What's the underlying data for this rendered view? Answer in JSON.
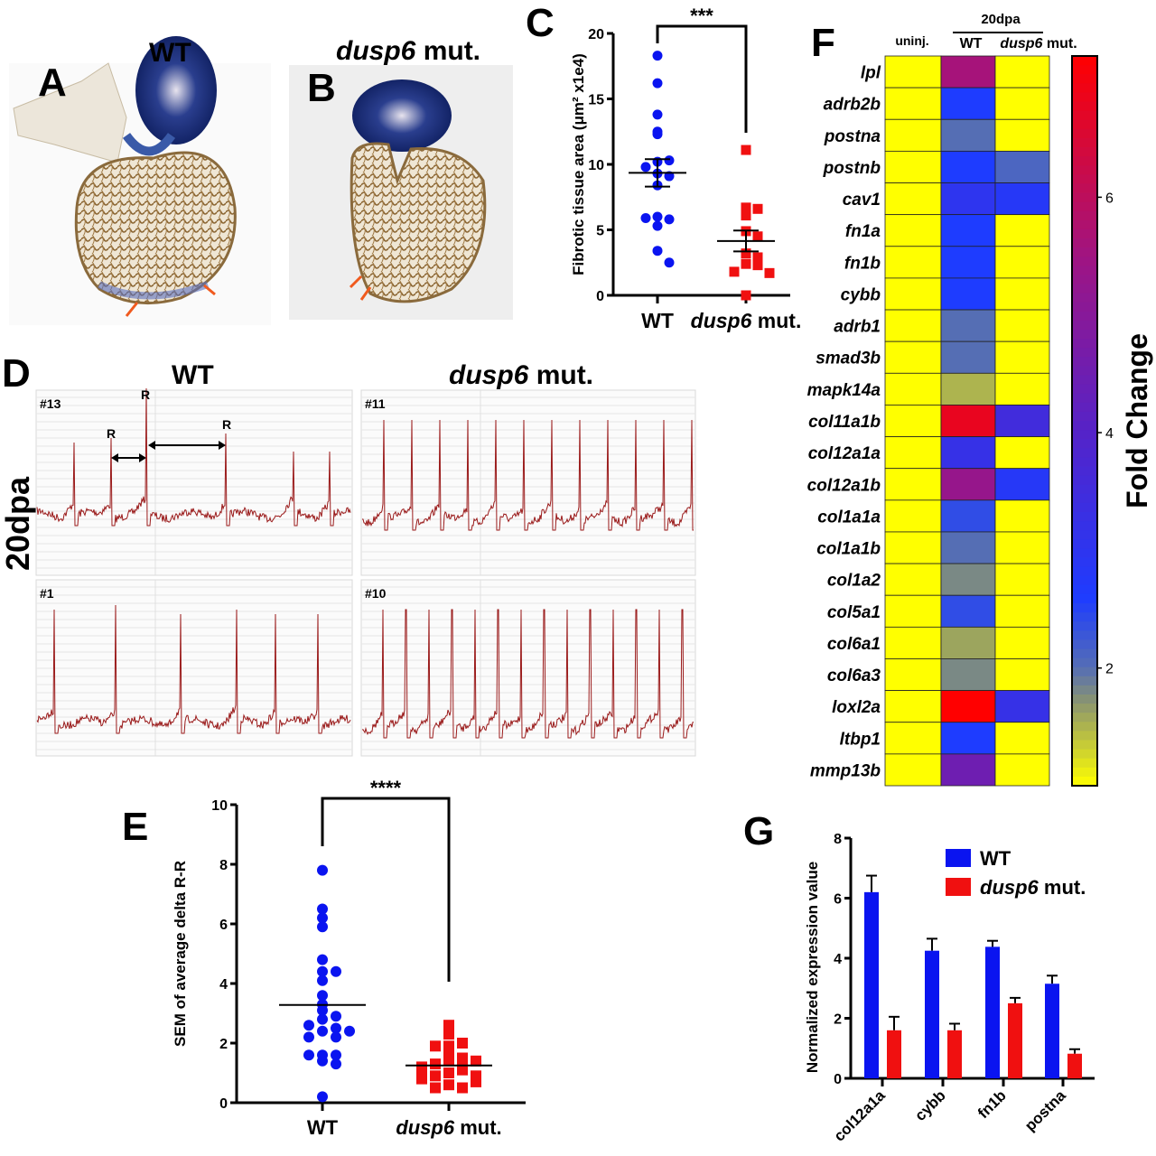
{
  "panels": {
    "A": {
      "letter": "A",
      "title": "WT"
    },
    "B": {
      "letter": "B",
      "title": {
        "italic": "dusp6",
        "rest": " mut."
      }
    },
    "D": {
      "letter": "D",
      "title_wt": "WT",
      "title_mut": {
        "italic": "dusp6",
        "rest": " mut."
      },
      "row_label": "20dpa",
      "traces": [
        "#13",
        "#11",
        "#1",
        "#10"
      ],
      "peak_label": "R"
    },
    "colors": {
      "wt": "#0a14f0",
      "mut": "#f01010",
      "ecg": "#9a1a1a",
      "arrow": "#f05a1e"
    }
  },
  "chart_data": [
    {
      "panel": "C",
      "type": "scatter",
      "ylabel": "Fibrotic tissue area (μm² x1e4)",
      "ylim": [
        0,
        20
      ],
      "yticks": [
        "0",
        "5",
        "10",
        "15",
        "20"
      ],
      "categories": [
        "WT",
        {
          "italic": "dusp6",
          "rest": " mut."
        }
      ],
      "significance": "***",
      "series": [
        {
          "values": [
            18.3,
            16.2,
            13.8,
            12.3,
            12.5,
            10.2,
            10.3,
            9.8,
            9.3,
            9.1,
            8.4,
            6.0,
            5.8,
            5.9,
            5.3,
            3.4,
            2.5
          ],
          "mean": 9.35,
          "sem": [
            8.3,
            10.4
          ],
          "marker": "circle"
        },
        {
          "values": [
            11.1,
            6.7,
            6.6,
            6.1,
            4.9,
            4.5,
            3.2,
            2.9,
            2.4,
            2.3,
            1.8,
            1.7,
            0.0
          ],
          "mean": 4.15,
          "sem": [
            3.35,
            4.95
          ],
          "marker": "square"
        }
      ]
    },
    {
      "panel": "E",
      "type": "scatter",
      "ylabel": "SEM of average delta R-R",
      "ylim": [
        0,
        10
      ],
      "yticks": [
        "0",
        "2",
        "4",
        "6",
        "8",
        "10"
      ],
      "categories": [
        "WT",
        {
          "italic": "dusp6",
          "rest": " mut."
        }
      ],
      "significance": "****",
      "series": [
        {
          "values": [
            7.8,
            6.5,
            6.2,
            5.9,
            4.8,
            4.4,
            4.4,
            4.1,
            3.6,
            3.3,
            3.1,
            2.9,
            2.8,
            2.5,
            2.4,
            2.2,
            2.2,
            2.4,
            2.6,
            1.6,
            1.4,
            1.3,
            1.6,
            1.6,
            0.2
          ],
          "mean": 3.28,
          "marker": "circle"
        },
        {
          "values": [
            2.6,
            2.3,
            1.9,
            2.0,
            1.9,
            1.7,
            1.5,
            1.4,
            1.2,
            1.0,
            1.1,
            1.3,
            1.4,
            0.9,
            0.6,
            0.5,
            0.5,
            0.7,
            0.8,
            0.9,
            1.2,
            1.0
          ],
          "mean": 1.25,
          "marker": "square"
        }
      ]
    },
    {
      "panel": "F",
      "type": "heatmap",
      "group_label": "20dpa",
      "columns": [
        "uninj.",
        "WT",
        {
          "italic": "dusp6",
          "rest": " mut."
        }
      ],
      "rows": [
        "lpl",
        "adrb2b",
        "postna",
        "postnb",
        "cav1",
        "fn1a",
        "fn1b",
        "cybb",
        "adrb1",
        "smad3b",
        "mapk14a",
        "col11a1b",
        "col12a1a",
        "col12a1b",
        "col1a1a",
        "col1a1b",
        "col1a2",
        "col5a1",
        "col6a1",
        "col6a3",
        "loxl2a",
        "ltbp1",
        "mmp13b"
      ],
      "values": [
        [
          1,
          5.6,
          1
        ],
        [
          1,
          2.6,
          1
        ],
        [
          1,
          2.0,
          1
        ],
        [
          1,
          2.6,
          2.1
        ],
        [
          1,
          3.0,
          2.8
        ],
        [
          1,
          2.6,
          1
        ],
        [
          1,
          2.6,
          1
        ],
        [
          1,
          2.6,
          1
        ],
        [
          1,
          2.0,
          1
        ],
        [
          1,
          2.0,
          1
        ],
        [
          1,
          1.5,
          1
        ],
        [
          1,
          6.8,
          3.5
        ],
        [
          1,
          3.2,
          1
        ],
        [
          1,
          5.3,
          2.8
        ],
        [
          1,
          2.4,
          1
        ],
        [
          1,
          2.0,
          1
        ],
        [
          1,
          1.8,
          1
        ],
        [
          1,
          2.4,
          1
        ],
        [
          1,
          1.6,
          1
        ],
        [
          1,
          1.8,
          1
        ],
        [
          1,
          7.2,
          3.2
        ],
        [
          1,
          2.6,
          1
        ],
        [
          1,
          4.5,
          1
        ]
      ],
      "colorbar_label": "Fold Change",
      "colorbar_range": [
        1,
        7.2
      ],
      "colorbar_ticks": [
        "2",
        "4",
        "6"
      ],
      "colormap": [
        "#ffff00",
        "#1e3cff",
        "#7a18b0",
        "#ff0000"
      ]
    },
    {
      "panel": "G",
      "type": "bar",
      "ylabel": "Normalized expression value",
      "ylim": [
        0,
        8
      ],
      "yticks": [
        "0",
        "2",
        "4",
        "6",
        "8"
      ],
      "categories": [
        "col12a1a",
        "cybb",
        "fn1b",
        "postna"
      ],
      "series": [
        {
          "name": "WT",
          "values": [
            6.2,
            4.25,
            4.38,
            3.15
          ],
          "errors": [
            0.55,
            0.4,
            0.2,
            0.27
          ]
        },
        {
          "name": {
            "italic": "dusp6",
            "rest": " mut."
          },
          "values": [
            1.6,
            1.6,
            2.5,
            0.82
          ],
          "errors": [
            0.45,
            0.22,
            0.18,
            0.15
          ]
        }
      ],
      "legend": "top-right"
    }
  ]
}
